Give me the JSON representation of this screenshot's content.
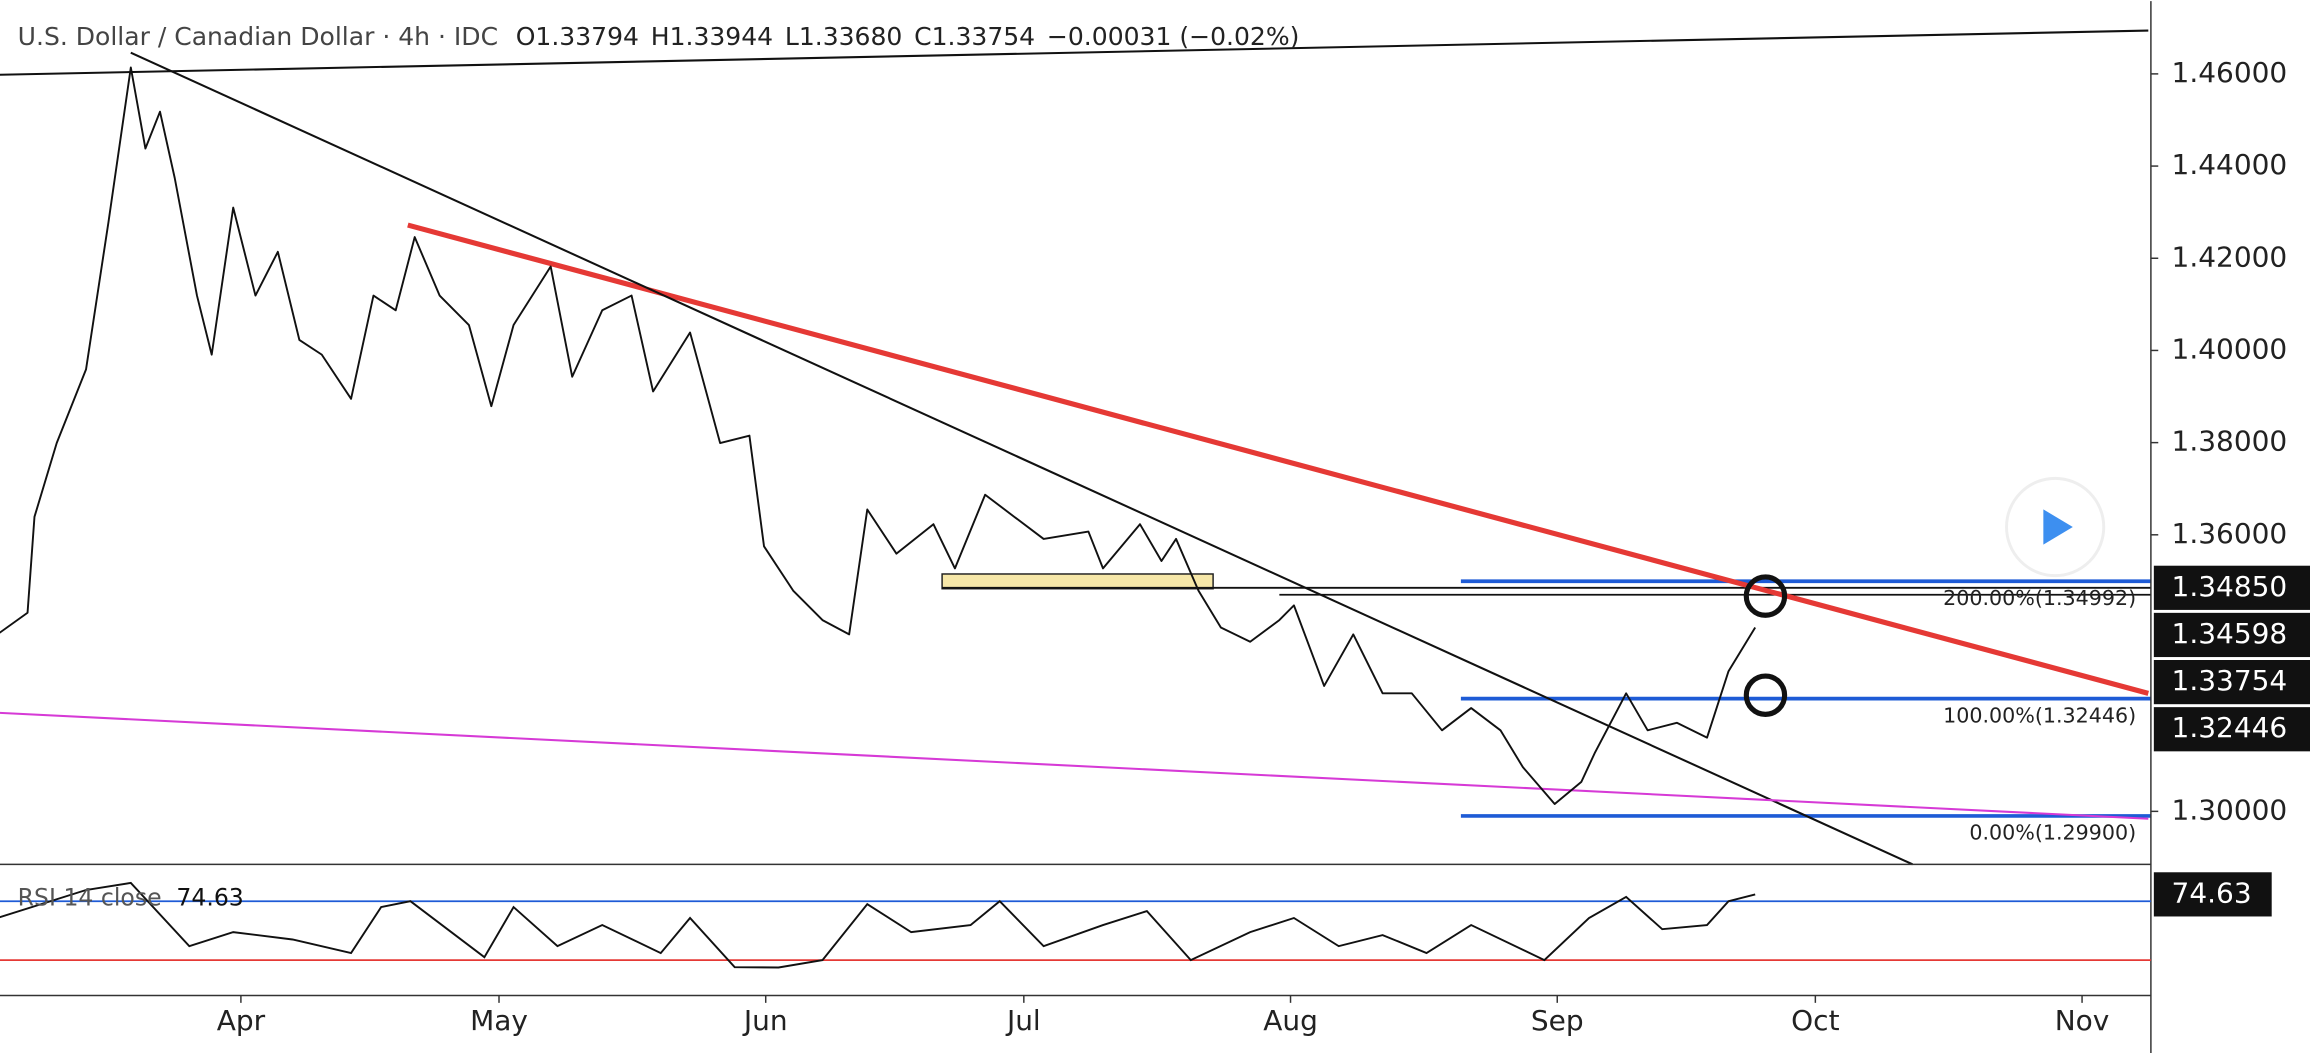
{
  "chart_data": {
    "type": "line",
    "title": "U.S. Dollar / Canadian Dollar · 4h · IDC",
    "ohlc": [
      {
        "key": "O",
        "value": "1.33794"
      },
      {
        "key": "H",
        "value": "1.33944"
      },
      {
        "key": "L",
        "value": "1.33680"
      },
      {
        "key": "C",
        "value": "1.33754"
      }
    ],
    "change": "−0.00031 (−0.02%)",
    "xlim": [
      63,
      313
    ],
    "ylim": [
      1.2885,
      1.4758
    ],
    "xticks": [
      {
        "value": 91,
        "label": "Apr"
      },
      {
        "value": 121,
        "label": "May"
      },
      {
        "value": 152,
        "label": "Jun"
      },
      {
        "value": 182,
        "label": "Jul"
      },
      {
        "value": 213,
        "label": "Aug"
      },
      {
        "value": 244,
        "label": "Sep"
      },
      {
        "value": 274,
        "label": "Oct"
      },
      {
        "value": 305,
        "label": "Nov"
      }
    ],
    "yticks": [
      {
        "value": 1.3,
        "label": "1.30000"
      },
      {
        "value": 1.36,
        "label": "1.36000"
      },
      {
        "value": 1.38,
        "label": "1.38000"
      },
      {
        "value": 1.4,
        "label": "1.40000"
      },
      {
        "value": 1.42,
        "label": "1.42000"
      },
      {
        "value": 1.44,
        "label": "1.44000"
      },
      {
        "value": 1.46,
        "label": "1.46000"
      }
    ],
    "series": [
      {
        "color": "#111111",
        "x": [
          62.7,
          66.2,
          67.0,
          69.6,
          73.0,
          75.6,
          78.2,
          79.9,
          81.6,
          83.3,
          85.9,
          87.6,
          90.1,
          92.7,
          95.3,
          97.8,
          100.4,
          103.8,
          106.4,
          109.0,
          111.2,
          114.1,
          117.5,
          120.1,
          122.7,
          127.0,
          129.5,
          133.0,
          136.4,
          138.9,
          143.2,
          146.7,
          150.1,
          151.8,
          155.2,
          158.6,
          161.7,
          163.8,
          167.2,
          171.5,
          174.0,
          177.5,
          180.9,
          184.3,
          189.5,
          191.2,
          195.5,
          198.0,
          199.7,
          202.3,
          204.9,
          208.3,
          211.7,
          213.4,
          216.9,
          220.3,
          223.7,
          227.1,
          230.6,
          234.0,
          237.4,
          240.0,
          243.7,
          246.8,
          248.4,
          252.0,
          254.5,
          257.9,
          261.4,
          263.9,
          267.0
        ],
        "values": [
          1.3384,
          1.3431,
          1.3639,
          1.3799,
          1.3959,
          1.4278,
          1.4614,
          1.4438,
          1.4518,
          1.4374,
          1.4119,
          1.3991,
          1.431,
          1.4119,
          1.4214,
          1.4023,
          1.3991,
          1.3895,
          1.4119,
          1.4087,
          1.4246,
          1.4119,
          1.4055,
          1.3879,
          1.4055,
          1.4182,
          1.3943,
          1.4087,
          1.4119,
          1.3911,
          1.4039,
          1.3799,
          1.3815,
          1.3575,
          1.3479,
          1.3415,
          1.3384,
          1.3655,
          1.3559,
          1.3623,
          1.3527,
          1.3687,
          1.3639,
          1.3591,
          1.3607,
          1.3527,
          1.3623,
          1.3543,
          1.3591,
          1.3479,
          1.3399,
          1.3368,
          1.3415,
          1.3447,
          1.3272,
          1.3384,
          1.3256,
          1.3256,
          1.3176,
          1.3224,
          1.3176,
          1.3096,
          1.3016,
          1.3064,
          1.3128,
          1.3256,
          1.3176,
          1.3192,
          1.316,
          1.3304,
          1.3399
        ]
      }
    ],
    "price_tags": [
      {
        "value": 1.3485,
        "label": "1.34850"
      },
      {
        "value": 1.34598,
        "label": "1.34598"
      },
      {
        "value": 1.33754,
        "label": "1.33754"
      },
      {
        "value": 1.32446,
        "label": "1.32446"
      }
    ],
    "fib_levels": [
      {
        "label": "200.00%(1.34992)",
        "value": 1.34992
      },
      {
        "label": "100.00%(1.32446)",
        "value": 1.32446
      },
      {
        "label": "0.00%(1.29900)",
        "value": 1.299
      }
    ],
    "fib_start": 232.8,
    "fib_color": "#1e5bd6",
    "trendlines": [
      {
        "x": [
          110.4,
          312.7
        ],
        "y": [
          1.4272,
          1.3256
        ],
        "color": "#e53935",
        "width": 3.5
      },
      {
        "x": [
          78.2,
          285.3
        ],
        "y": [
          1.4646,
          1.2885
        ],
        "color": "#111111",
        "width": 1.4
      },
      {
        "x": [
          62.7,
          312.7
        ],
        "y": [
          1.4598,
          1.4694
        ],
        "color": "#111111",
        "width": 1.4
      },
      {
        "x": [
          62.7,
          312.7
        ],
        "y": [
          1.3214,
          1.2984
        ],
        "color": "#d63ad6",
        "width": 1.4
      }
    ],
    "hlines": [
      {
        "x0": 172.5,
        "y": 1.3485
      },
      {
        "x0": 211.7,
        "y": 1.347
      }
    ],
    "box": {
      "x": [
        172.5,
        204.0
      ],
      "y": [
        1.3515,
        1.3483
      ],
      "color": "#f6e7a8"
    },
    "circles": [
      {
        "x": 268.2,
        "y": 1.3467
      },
      {
        "x": 268.2,
        "y": 1.3252
      }
    ],
    "rsi": {
      "name": "RSI 14 close",
      "value": 74.63,
      "ylim": [
        6,
        91
      ],
      "levels": [
        70,
        30
      ],
      "x": [
        62.7,
        73.0,
        78.2,
        85.0,
        90.1,
        97.0,
        103.8,
        107.3,
        110.7,
        119.3,
        122.7,
        127.8,
        133.0,
        139.8,
        143.2,
        148.4,
        153.5,
        158.6,
        163.8,
        168.9,
        175.8,
        179.2,
        184.3,
        191.2,
        196.3,
        201.4,
        208.3,
        213.4,
        218.6,
        223.7,
        228.8,
        234.0,
        242.5,
        247.7,
        252.0,
        256.2,
        261.4,
        263.9,
        267.0
      ],
      "values": [
        58.6,
        77.6,
        82.4,
        39.5,
        49,
        44,
        34.8,
        66,
        70,
        32,
        66,
        39.5,
        53.8,
        34.8,
        58.6,
        25.2,
        25,
        30,
        68,
        49,
        53.8,
        70,
        39.5,
        53.8,
        63.3,
        30,
        49,
        58.6,
        39.5,
        47,
        34.8,
        53.8,
        30,
        58.6,
        72.9,
        51,
        53.8,
        70,
        74.63
      ]
    }
  }
}
